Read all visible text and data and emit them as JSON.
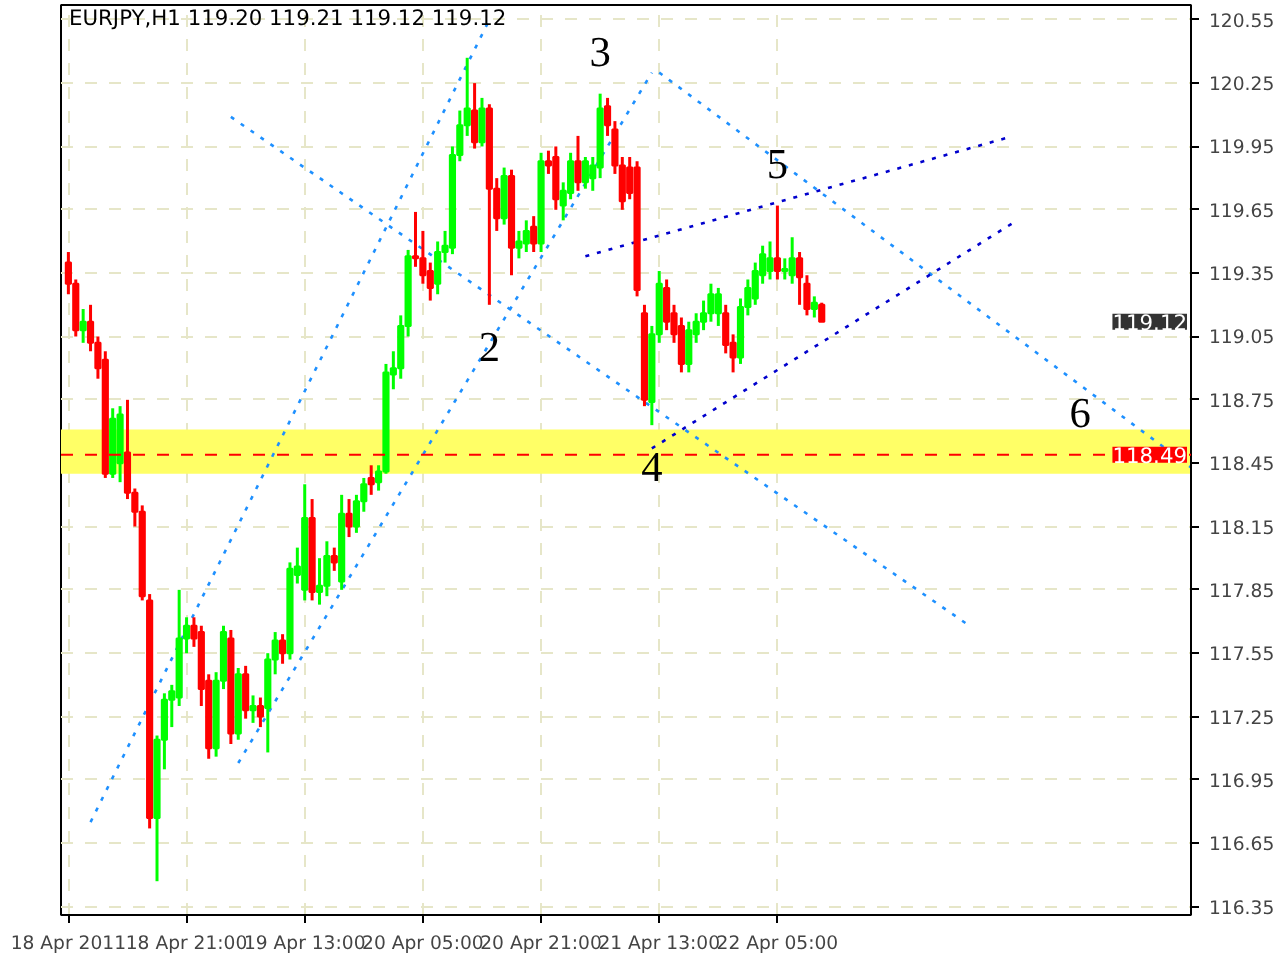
{
  "chart_data": {
    "type": "candlestick",
    "title": "EURJPY,H1  119.20 119.21 119.12 119.12",
    "x": [
      "2011-04-18T05:00",
      "2011-04-18T06:00",
      "2011-04-18T07:00",
      "2011-04-18T08:00",
      "2011-04-18T09:00",
      "2011-04-18T10:00",
      "2011-04-18T11:00",
      "2011-04-18T12:00",
      "2011-04-18T13:00",
      "2011-04-18T14:00",
      "2011-04-18T15:00",
      "2011-04-18T16:00",
      "2011-04-18T17:00",
      "2011-04-18T18:00",
      "2011-04-18T19:00",
      "2011-04-18T20:00",
      "2011-04-18T21:00",
      "2011-04-18T22:00",
      "2011-04-18T23:00",
      "2011-04-19T00:00",
      "2011-04-19T01:00",
      "2011-04-19T02:00",
      "2011-04-19T03:00",
      "2011-04-19T04:00",
      "2011-04-19T05:00",
      "2011-04-19T06:00",
      "2011-04-19T07:00",
      "2011-04-19T08:00",
      "2011-04-19T09:00",
      "2011-04-19T10:00",
      "2011-04-19T11:00",
      "2011-04-19T12:00",
      "2011-04-19T13:00",
      "2011-04-19T14:00",
      "2011-04-19T15:00",
      "2011-04-19T16:00",
      "2011-04-19T17:00",
      "2011-04-19T18:00",
      "2011-04-19T19:00",
      "2011-04-19T20:00",
      "2011-04-19T21:00",
      "2011-04-19T22:00",
      "2011-04-19T23:00",
      "2011-04-20T00:00",
      "2011-04-20T01:00",
      "2011-04-20T02:00",
      "2011-04-20T03:00",
      "2011-04-20T04:00",
      "2011-04-20T05:00",
      "2011-04-20T06:00",
      "2011-04-20T07:00",
      "2011-04-20T08:00",
      "2011-04-20T09:00",
      "2011-04-20T10:00",
      "2011-04-20T11:00",
      "2011-04-20T12:00",
      "2011-04-20T13:00",
      "2011-04-20T14:00",
      "2011-04-20T15:00",
      "2011-04-20T16:00",
      "2011-04-20T17:00",
      "2011-04-20T18:00",
      "2011-04-20T19:00",
      "2011-04-20T20:00",
      "2011-04-20T21:00",
      "2011-04-20T22:00",
      "2011-04-20T23:00",
      "2011-04-21T00:00",
      "2011-04-21T01:00",
      "2011-04-21T02:00",
      "2011-04-21T03:00",
      "2011-04-21T04:00",
      "2011-04-21T05:00",
      "2011-04-21T06:00",
      "2011-04-21T07:00",
      "2011-04-21T08:00",
      "2011-04-21T09:00",
      "2011-04-21T10:00",
      "2011-04-21T11:00",
      "2011-04-21T12:00",
      "2011-04-21T13:00",
      "2011-04-21T14:00",
      "2011-04-21T15:00",
      "2011-04-21T16:00",
      "2011-04-21T17:00",
      "2011-04-21T18:00",
      "2011-04-21T19:00",
      "2011-04-21T20:00",
      "2011-04-21T21:00",
      "2011-04-21T22:00",
      "2011-04-21T23:00",
      "2011-04-22T00:00",
      "2011-04-22T01:00",
      "2011-04-22T02:00",
      "2011-04-22T03:00",
      "2011-04-22T04:00",
      "2011-04-22T05:00",
      "2011-04-22T06:00",
      "2011-04-22T07:00",
      "2011-04-22T08:00",
      "2011-04-22T09:00",
      "2011-04-22T10:00",
      "2011-04-22T11:00"
    ],
    "ohlc": [
      [
        119.4,
        119.45,
        119.25,
        119.3
      ],
      [
        119.3,
        119.32,
        119.05,
        119.08
      ],
      [
        119.08,
        119.18,
        119.02,
        119.12
      ],
      [
        119.12,
        119.2,
        118.98,
        119.02
      ],
      [
        119.02,
        119.05,
        118.85,
        118.9
      ],
      [
        118.94,
        118.98,
        118.38,
        118.4
      ],
      [
        118.4,
        118.71,
        118.38,
        118.66
      ],
      [
        118.45,
        118.72,
        118.36,
        118.68
      ],
      [
        118.5,
        118.75,
        118.28,
        118.31
      ],
      [
        118.31,
        118.33,
        118.15,
        118.22
      ],
      [
        118.22,
        118.25,
        117.8,
        117.82
      ],
      [
        117.8,
        117.83,
        116.72,
        116.77
      ],
      [
        116.77,
        117.16,
        116.47,
        117.14
      ],
      [
        117.14,
        117.36,
        117.0,
        117.33
      ],
      [
        117.33,
        117.4,
        117.2,
        117.37
      ],
      [
        117.34,
        117.85,
        117.3,
        117.62
      ],
      [
        117.62,
        117.72,
        117.55,
        117.68
      ],
      [
        117.68,
        117.72,
        117.58,
        117.62
      ],
      [
        117.65,
        117.68,
        117.3,
        117.38
      ],
      [
        117.42,
        117.45,
        117.05,
        117.1
      ],
      [
        117.1,
        117.46,
        117.06,
        117.42
      ],
      [
        117.42,
        117.68,
        117.38,
        117.65
      ],
      [
        117.62,
        117.66,
        117.12,
        117.17
      ],
      [
        117.17,
        117.48,
        117.14,
        117.45
      ],
      [
        117.45,
        117.49,
        117.24,
        117.28
      ],
      [
        117.28,
        117.35,
        117.22,
        117.3
      ],
      [
        117.3,
        117.34,
        117.2,
        117.25
      ],
      [
        117.29,
        117.55,
        117.08,
        117.52
      ],
      [
        117.52,
        117.65,
        117.45,
        117.61
      ],
      [
        117.61,
        117.64,
        117.5,
        117.55
      ],
      [
        117.55,
        117.98,
        117.52,
        117.95
      ],
      [
        117.92,
        118.05,
        117.88,
        117.96
      ],
      [
        117.85,
        118.35,
        117.8,
        118.19
      ],
      [
        118.19,
        118.28,
        117.8,
        117.84
      ],
      [
        117.84,
        118.0,
        117.78,
        117.87
      ],
      [
        117.87,
        118.08,
        117.82,
        118.01
      ],
      [
        118.01,
        118.05,
        117.94,
        117.98
      ],
      [
        117.89,
        118.3,
        117.85,
        118.21
      ],
      [
        118.21,
        118.28,
        118.1,
        118.15
      ],
      [
        118.15,
        118.3,
        118.12,
        118.27
      ],
      [
        118.27,
        118.38,
        118.22,
        118.35
      ],
      [
        118.38,
        118.44,
        118.3,
        118.35
      ],
      [
        118.36,
        118.44,
        118.32,
        118.41
      ],
      [
        118.41,
        118.92,
        118.4,
        118.88
      ],
      [
        118.87,
        118.98,
        118.8,
        118.9
      ],
      [
        118.9,
        119.15,
        118.85,
        119.1
      ],
      [
        119.1,
        119.46,
        119.05,
        119.43
      ],
      [
        119.43,
        119.64,
        119.38,
        119.42
      ],
      [
        119.42,
        119.55,
        119.3,
        119.34
      ],
      [
        119.36,
        119.4,
        119.22,
        119.28
      ],
      [
        119.3,
        119.5,
        119.25,
        119.45
      ],
      [
        119.45,
        119.55,
        119.4,
        119.48
      ],
      [
        119.47,
        119.95,
        119.44,
        119.91
      ],
      [
        119.91,
        120.12,
        119.88,
        120.05
      ],
      [
        120.05,
        120.37,
        120.0,
        120.13
      ],
      [
        120.12,
        120.25,
        119.94,
        119.97
      ],
      [
        119.97,
        120.18,
        119.95,
        120.13
      ],
      [
        120.13,
        120.15,
        119.2,
        119.75
      ],
      [
        119.75,
        119.8,
        119.55,
        119.61
      ],
      [
        119.61,
        119.85,
        119.58,
        119.81
      ],
      [
        119.81,
        119.84,
        119.34,
        119.47
      ],
      [
        119.47,
        119.55,
        119.42,
        119.5
      ],
      [
        119.49,
        119.6,
        119.45,
        119.55
      ],
      [
        119.57,
        119.62,
        119.45,
        119.49
      ],
      [
        119.49,
        119.92,
        119.45,
        119.88
      ],
      [
        119.88,
        119.93,
        119.82,
        119.86
      ],
      [
        119.9,
        119.95,
        119.65,
        119.7
      ],
      [
        119.67,
        119.78,
        119.6,
        119.74
      ],
      [
        119.73,
        119.92,
        119.7,
        119.88
      ],
      [
        119.88,
        120.0,
        119.74,
        119.78
      ],
      [
        119.78,
        119.9,
        119.75,
        119.88
      ],
      [
        119.8,
        119.9,
        119.74,
        119.86
      ],
      [
        119.85,
        120.2,
        119.8,
        120.13
      ],
      [
        120.14,
        120.18,
        120.0,
        120.05
      ],
      [
        120.03,
        120.07,
        119.82,
        119.86
      ],
      [
        119.86,
        119.9,
        119.65,
        119.69
      ],
      [
        119.85,
        119.9,
        119.7,
        119.73
      ],
      [
        119.85,
        119.88,
        119.24,
        119.27
      ],
      [
        119.16,
        119.2,
        118.72,
        118.75
      ],
      [
        118.74,
        119.1,
        118.63,
        119.06
      ],
      [
        119.06,
        119.36,
        119.02,
        119.3
      ],
      [
        119.28,
        119.32,
        119.08,
        119.12
      ],
      [
        119.16,
        119.2,
        119.02,
        119.06
      ],
      [
        119.1,
        119.14,
        118.88,
        118.92
      ],
      [
        118.92,
        119.12,
        118.88,
        119.08
      ],
      [
        119.06,
        119.16,
        119.02,
        119.12
      ],
      [
        119.12,
        119.22,
        119.08,
        119.16
      ],
      [
        119.16,
        119.3,
        119.12,
        119.25
      ],
      [
        119.16,
        119.28,
        119.1,
        119.25
      ],
      [
        119.16,
        119.2,
        118.97,
        119.01
      ],
      [
        119.02,
        119.06,
        118.88,
        118.95
      ],
      [
        118.95,
        119.23,
        118.92,
        119.19
      ],
      [
        119.19,
        119.32,
        119.15,
        119.28
      ],
      [
        119.23,
        119.4,
        119.2,
        119.36
      ],
      [
        119.34,
        119.48,
        119.3,
        119.44
      ],
      [
        119.36,
        119.5,
        119.32,
        119.42
      ],
      [
        119.42,
        119.67,
        119.32,
        119.36
      ],
      [
        119.36,
        119.42,
        119.32,
        119.37
      ],
      [
        119.34,
        119.52,
        119.3,
        119.42
      ],
      [
        119.42,
        119.45,
        119.2,
        119.33
      ],
      [
        119.3,
        119.34,
        119.15,
        119.18
      ],
      [
        119.18,
        119.24,
        119.14,
        119.21
      ],
      [
        119.2,
        119.21,
        119.12,
        119.12
      ]
    ],
    "colors": [
      "#ff0000",
      "#ff0000",
      "#00ff00",
      "#ff0000",
      "#ff0000",
      "#ff0000",
      "#00ff00",
      "#00ff00",
      "#ff0000",
      "#ff0000",
      "#ff0000",
      "#ff0000",
      "#00ff00",
      "#00ff00",
      "#00ff00",
      "#00ff00",
      "#00ff00",
      "#ff0000",
      "#ff0000",
      "#ff0000",
      "#00ff00",
      "#00ff00",
      "#ff0000",
      "#00ff00",
      "#ff0000",
      "#00ff00",
      "#ff0000",
      "#00ff00",
      "#00ff00",
      "#ff0000",
      "#00ff00",
      "#00ff00",
      "#00ff00",
      "#ff0000",
      "#00ff00",
      "#00ff00",
      "#ff0000",
      "#00ff00",
      "#ff0000",
      "#00ff00",
      "#00ff00",
      "#ff0000",
      "#00ff00",
      "#00ff00",
      "#00ff00",
      "#00ff00",
      "#00ff00",
      "#ff0000",
      "#ff0000",
      "#ff0000",
      "#00ff00",
      "#00ff00",
      "#00ff00",
      "#00ff00",
      "#00ff00",
      "#ff0000",
      "#00ff00",
      "#ff0000",
      "#ff0000",
      "#00ff00",
      "#ff0000",
      "#00ff00",
      "#00ff00",
      "#ff0000",
      "#00ff00",
      "#ff0000",
      "#ff0000",
      "#00ff00",
      "#00ff00",
      "#ff0000",
      "#00ff00",
      "#00ff00",
      "#00ff00",
      "#ff0000",
      "#ff0000",
      "#ff0000",
      "#ff0000",
      "#ff0000",
      "#ff0000",
      "#00ff00",
      "#00ff00",
      "#ff0000",
      "#ff0000",
      "#ff0000",
      "#00ff00",
      "#00ff00",
      "#00ff00",
      "#00ff00",
      "#00ff00",
      "#ff0000",
      "#ff0000",
      "#00ff00",
      "#00ff00",
      "#00ff00",
      "#00ff00",
      "#00ff00",
      "#ff0000",
      "#00ff00",
      "#00ff00",
      "#ff0000",
      "#ff0000",
      "#00ff00",
      "#ff0000"
    ],
    "series": [
      {
        "type": "line",
        "x": [
          "2011-04-18T08:00",
          "2011-04-20T14:00"
        ],
        "values": [
          116.75,
          120.55
        ],
        "color": "#1e90ff",
        "line_style": "dotted"
      },
      {
        "type": "line",
        "x": [
          "2011-04-19T04:00",
          "2011-04-21T12:00"
        ],
        "values": [
          117.03,
          120.3
        ],
        "color": "#1e90ff",
        "line_style": "dotted"
      },
      {
        "type": "line",
        "x": [
          "2011-04-19T03:00",
          "2011-04-23T07:00"
        ],
        "values": [
          120.09,
          117.68
        ],
        "color": "#1e90ff",
        "line_style": "dotted"
      },
      {
        "type": "line",
        "x": [
          "2011-04-21T13:00",
          "2011-04-24T13:00"
        ],
        "values": [
          120.3,
          118.43
        ],
        "color": "#1e90ff",
        "line_style": "dotted"
      },
      {
        "type": "line",
        "x": [
          "2011-04-21T03:00",
          "2011-04-23T12:00"
        ],
        "values": [
          119.43,
          119.99
        ],
        "color": "#0000cd",
        "line_style": "dotted"
      },
      {
        "type": "line",
        "x": [
          "2011-04-21T12:00",
          "2011-04-23T13:00"
        ],
        "values": [
          118.52,
          119.59
        ],
        "color": "#0000cd",
        "line_style": "dotted"
      }
    ],
    "bands": [
      {
        "axis": "y",
        "from": 118.4,
        "to": 118.61,
        "color": "#ffff66"
      }
    ],
    "ref_lines": [
      {
        "axis": "y",
        "value": 118.49,
        "label": "118.49",
        "color": "#ff0000",
        "line_style": "dashed"
      }
    ],
    "annotations": [
      "119.12",
      {
        "text": "2",
        "x": "2011-04-20T14:00",
        "y": 119.2
      },
      {
        "text": "3",
        "x": "2011-04-21T05:00",
        "y": 120.2
      },
      {
        "text": "4",
        "x": "2011-04-21T12:00",
        "y": 118.63
      },
      {
        "text": "5",
        "x": "2011-04-22T05:00",
        "y": 119.67
      },
      {
        "text": "6",
        "x": "2011-04-23T22:00",
        "y": 118.49
      }
    ],
    "xlim": [
      "2011-04-18T04:00",
      "2011-04-24T13:00"
    ],
    "ylim": [
      116.31,
      120.62
    ],
    "xticks": [
      {
        "value": "2011-04-18T05:00",
        "label": "18 Apr 2011"
      },
      {
        "value": "2011-04-18T21:00",
        "label": "18 Apr 21:00"
      },
      {
        "value": "2011-04-19T13:00",
        "label": "19 Apr 13:00"
      },
      {
        "value": "2011-04-20T05:00",
        "label": "20 Apr 05:00"
      },
      {
        "value": "2011-04-20T21:00",
        "label": "20 Apr 21:00"
      },
      {
        "value": "2011-04-21T13:00",
        "label": "21 Apr 13:00"
      },
      {
        "value": "2011-04-22T05:00",
        "label": "22 Apr 05:00"
      }
    ],
    "yticks": [
      116.35,
      116.65,
      116.95,
      117.25,
      117.55,
      117.85,
      118.15,
      118.45,
      118.75,
      119.05,
      119.35,
      119.65,
      119.95,
      120.25,
      120.55
    ],
    "grid": true
  }
}
